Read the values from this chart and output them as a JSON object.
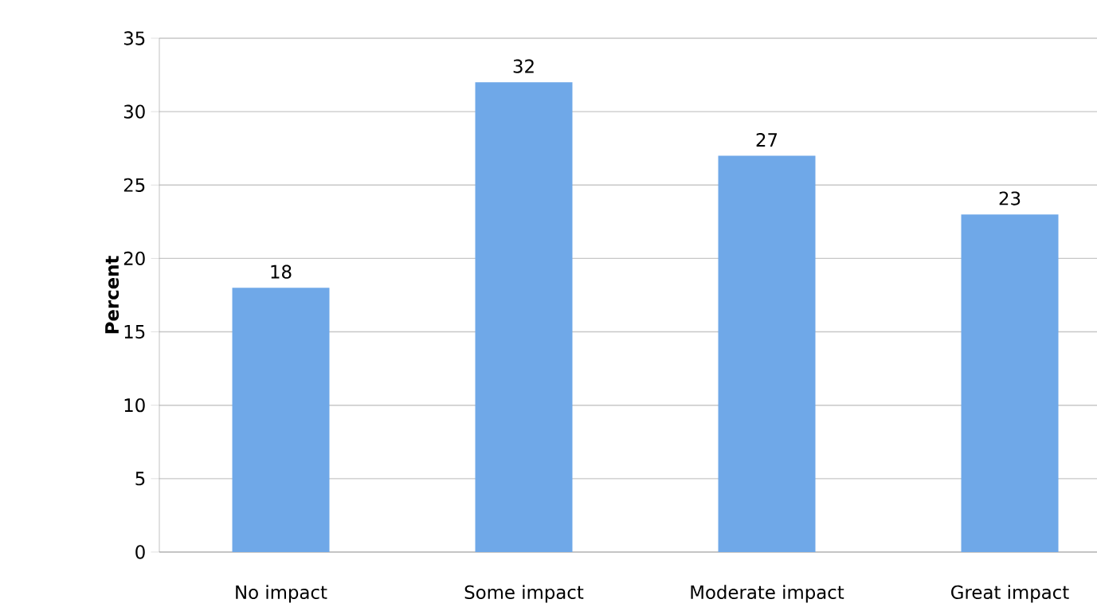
{
  "chart_data": {
    "type": "bar",
    "ylabel": "Percent",
    "categories": [
      "No impact",
      "Some impact",
      "Moderate impact",
      "Great impact"
    ],
    "values": [
      18,
      32,
      27,
      23
    ],
    "color": "#6fa8e8",
    "ylim": [
      0,
      35
    ],
    "yticks": [
      0,
      5,
      10,
      15,
      20,
      25,
      30,
      35
    ],
    "grid": "y",
    "data_labels": true
  }
}
